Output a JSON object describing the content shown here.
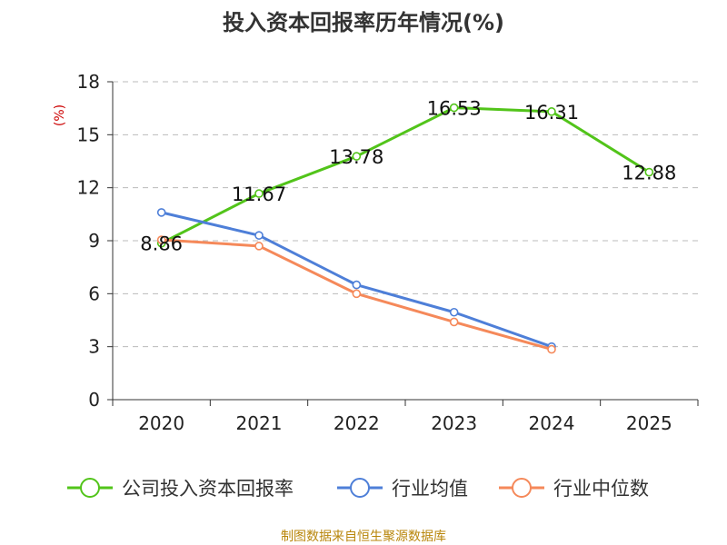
{
  "chart_data": {
    "type": "line",
    "title": "投入资本回报率历年情况(%)",
    "ylabel": "(%)",
    "xlabel": "",
    "categories": [
      "2020",
      "2021",
      "2022",
      "2023",
      "2024",
      "2025"
    ],
    "ylim": [
      0,
      18
    ],
    "yticks": [
      0,
      3,
      6,
      9,
      12,
      15,
      18
    ],
    "grid": true,
    "legend_position": "bottom",
    "series": [
      {
        "name": "公司投入资本回报率",
        "color": "#52c41a",
        "values": [
          8.86,
          11.67,
          13.78,
          16.53,
          16.31,
          12.88
        ],
        "labels": [
          "8.86",
          "11.67",
          "13.78",
          "16.53",
          "16.31",
          "12.88"
        ],
        "show_labels": true
      },
      {
        "name": "行业均值",
        "color": "#4e7fd8",
        "values": [
          10.6,
          9.3,
          6.5,
          4.95,
          3.0,
          null
        ],
        "show_labels": false
      },
      {
        "name": "行业中位数",
        "color": "#f5895a",
        "values": [
          9.05,
          8.7,
          6.0,
          4.4,
          2.85,
          null
        ],
        "show_labels": false
      }
    ]
  },
  "source_text": "制图数据来自恒生聚源数据库"
}
